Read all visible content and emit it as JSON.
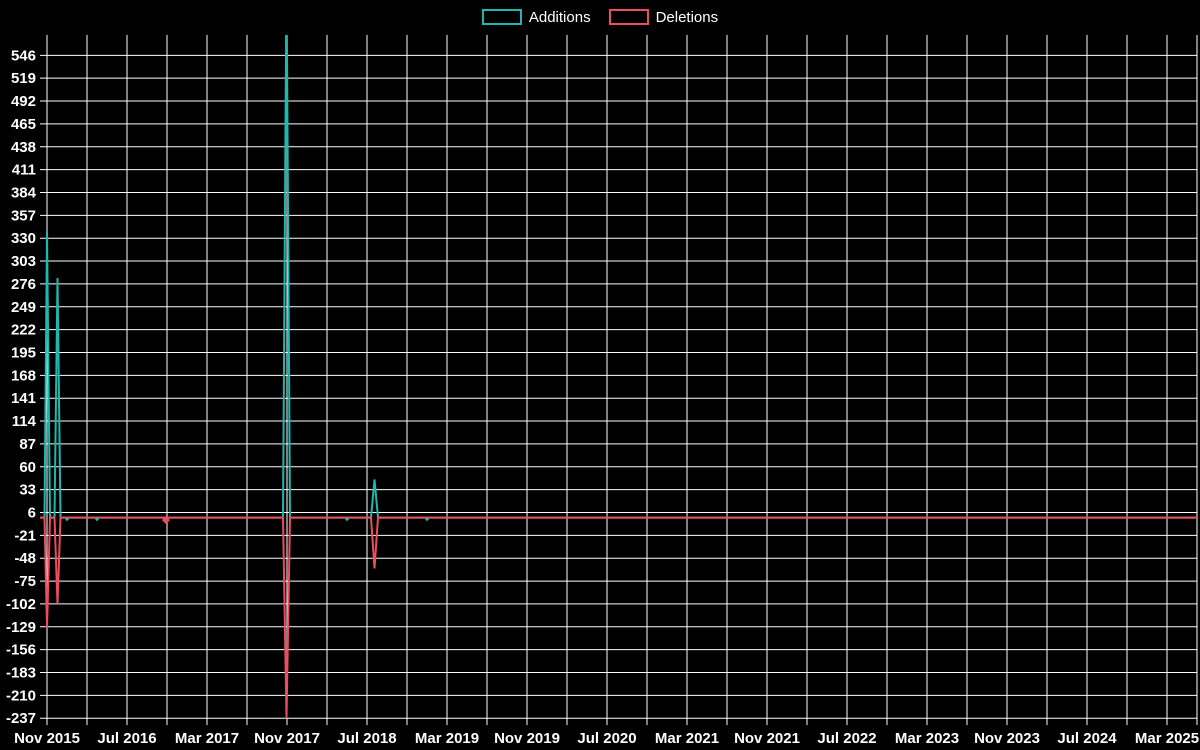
{
  "legend": {
    "additions_label": "Additions",
    "deletions_label": "Deletions"
  },
  "colors": {
    "background": "#000000",
    "grid": "#ffffff",
    "text": "#ffffff",
    "additions": "#1db8ae",
    "deletions": "#ee4d5f"
  },
  "chart_data": {
    "type": "line",
    "title": "",
    "legend_position": "top-center",
    "grid": true,
    "x_axis": {
      "tick_labels": [
        "Nov 2015",
        "Jul 2016",
        "Mar 2017",
        "Nov 2017",
        "Jul 2018",
        "Mar 2019",
        "Nov 2019",
        "Jul 2020",
        "Mar 2021",
        "Nov 2021",
        "Jul 2022",
        "Mar 2023",
        "Nov 2023",
        "Jul 2024",
        "Mar 2025"
      ],
      "tick_months": [
        0,
        8,
        16,
        24,
        32,
        40,
        48,
        56,
        64,
        72,
        80,
        88,
        96,
        104,
        112
      ],
      "gridline_step_months": 4,
      "range_months": [
        -0.7,
        115
      ]
    },
    "y_axis": {
      "ticks": [
        546,
        519,
        492,
        465,
        438,
        411,
        384,
        357,
        330,
        303,
        276,
        249,
        222,
        195,
        168,
        141,
        114,
        87,
        60,
        33,
        6,
        -21,
        -48,
        -75,
        -102,
        -129,
        -156,
        -183,
        -210,
        -237
      ],
      "range": [
        -245,
        570
      ]
    },
    "series": [
      {
        "name": "Additions",
        "color_key": "additions",
        "points": [
          [
            -0.7,
            0
          ],
          [
            -0.25,
            0
          ],
          [
            0,
            337
          ],
          [
            0.3,
            0
          ],
          [
            0.75,
            0
          ],
          [
            1.05,
            283
          ],
          [
            1.35,
            0
          ],
          [
            23.6,
            0
          ],
          [
            23.95,
            640
          ],
          [
            24.3,
            0
          ],
          [
            32.4,
            0
          ],
          [
            32.75,
            45
          ],
          [
            33.1,
            0
          ],
          [
            115,
            0
          ]
        ]
      },
      {
        "name": "Deletions",
        "color_key": "deletions",
        "points": [
          [
            -0.7,
            0
          ],
          [
            -0.25,
            0
          ],
          [
            0,
            -130
          ],
          [
            0.3,
            0
          ],
          [
            0.75,
            0
          ],
          [
            1.05,
            -102
          ],
          [
            1.35,
            0
          ],
          [
            23.6,
            0
          ],
          [
            23.95,
            -237
          ],
          [
            24.3,
            0
          ],
          [
            32.4,
            0
          ],
          [
            32.75,
            -60
          ],
          [
            33.1,
            0
          ],
          [
            115,
            0
          ]
        ]
      }
    ],
    "markers": [
      {
        "series_color_key": "deletions",
        "month": 11.9,
        "value": -3,
        "size": 4
      },
      {
        "series_color_key": "additions",
        "month": 2,
        "value": -2,
        "size": 2
      },
      {
        "series_color_key": "additions",
        "month": 5,
        "value": -2,
        "size": 2
      },
      {
        "series_color_key": "additions",
        "month": 30,
        "value": -2,
        "size": 2
      },
      {
        "series_color_key": "additions",
        "month": 38,
        "value": -2,
        "size": 2
      }
    ]
  }
}
